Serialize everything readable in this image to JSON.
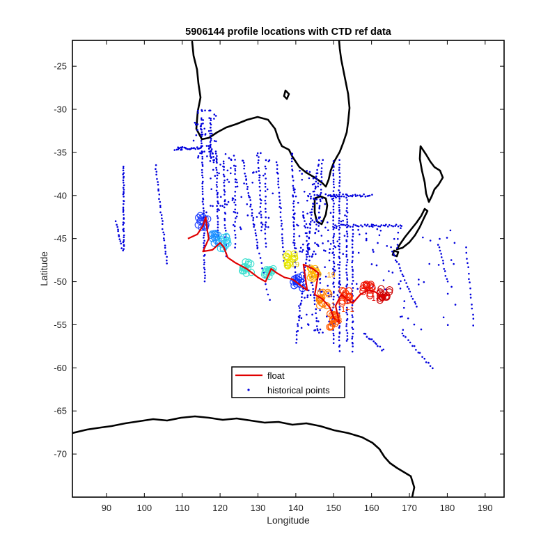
{
  "chart_data": {
    "type": "scatter",
    "title": "5906144 profile locations with CTD ref data",
    "xlabel": "Longitude",
    "ylabel": "Latitude",
    "xlim": [
      81,
      195
    ],
    "ylim": [
      -75,
      -22
    ],
    "xticks": [
      90,
      100,
      110,
      120,
      130,
      140,
      150,
      160,
      170,
      180,
      190
    ],
    "yticks": [
      -25,
      -30,
      -35,
      -40,
      -45,
      -50,
      -55,
      -60,
      -65,
      -70
    ],
    "grid": false,
    "legend": {
      "placement": "lower-center",
      "entries": [
        {
          "label": "float",
          "color": "#e00000",
          "style": "line"
        },
        {
          "label": "historical points",
          "color": "#0000dd",
          "style": "dot"
        }
      ]
    },
    "float_track": {
      "name": "float",
      "color": "#e00000",
      "points": [
        [
          111.5,
          -45.0
        ],
        [
          114.0,
          -44.5
        ],
        [
          115.5,
          -43.5
        ],
        [
          116.2,
          -42.5
        ],
        [
          116.6,
          -44.0
        ],
        [
          117.0,
          -45.0
        ],
        [
          115.5,
          -46.5
        ],
        [
          118.0,
          -46.3
        ],
        [
          120.0,
          -45.5
        ],
        [
          121.0,
          -46.0
        ],
        [
          122.0,
          -47.2
        ],
        [
          124.0,
          -47.8
        ],
        [
          127.0,
          -48.5
        ],
        [
          130.0,
          -49.5
        ],
        [
          132.0,
          -50.0
        ],
        [
          133.5,
          -48.5
        ],
        [
          135.0,
          -49.0
        ],
        [
          137.0,
          -49.5
        ],
        [
          139.0,
          -49.7
        ],
        [
          140.0,
          -50.0
        ],
        [
          141.5,
          -50.5
        ],
        [
          143.0,
          -51.0
        ],
        [
          142.0,
          -48.0
        ],
        [
          144.5,
          -48.5
        ],
        [
          146.0,
          -49.0
        ],
        [
          145.0,
          -51.5
        ],
        [
          147.0,
          -52.0
        ],
        [
          149.0,
          -53.0
        ],
        [
          150.0,
          -54.2
        ],
        [
          151.5,
          -54.8
        ],
        [
          150.5,
          -52.8
        ],
        [
          152.0,
          -51.5
        ],
        [
          153.5,
          -52.0
        ],
        [
          155.0,
          -52.5
        ],
        [
          157.0,
          -51.5
        ],
        [
          159.0,
          -51.0
        ],
        [
          161.0,
          -51.2
        ],
        [
          163.0,
          -51.8
        ],
        [
          164.5,
          -51.5
        ]
      ]
    },
    "profile_markers": [
      {
        "x": 115.5,
        "y": -43.0,
        "color": "#1f3fff"
      },
      {
        "x": 118.5,
        "y": -45.2,
        "color": "#1e90ff"
      },
      {
        "x": 121.0,
        "y": -45.5,
        "color": "#33ccee"
      },
      {
        "x": 127.0,
        "y": -48.5,
        "color": "#40e0d0"
      },
      {
        "x": 133.0,
        "y": -49.0,
        "color": "#40e0d0"
      },
      {
        "x": 138.5,
        "y": -47.5,
        "color": "#e8e800"
      },
      {
        "x": 140.5,
        "y": -50.0,
        "color": "#1030ff"
      },
      {
        "x": 145.0,
        "y": -49.2,
        "color": "#ffb300"
      },
      {
        "x": 147.5,
        "y": -52.0,
        "color": "#ff7f00"
      },
      {
        "x": 150.0,
        "y": -54.5,
        "color": "#ff5a00"
      },
      {
        "x": 153.0,
        "y": -51.8,
        "color": "#ff3300"
      },
      {
        "x": 159.0,
        "y": -51.0,
        "color": "#ee1100"
      },
      {
        "x": 163.5,
        "y": -51.6,
        "color": "#cc0000"
      }
    ],
    "profile_labels": [
      {
        "x": 138.7,
        "y": -48.3,
        "text": "19",
        "color": "#d4c200"
      },
      {
        "x": 148.2,
        "y": -49.5,
        "text": "19",
        "color": "#ff9900"
      },
      {
        "x": 148.8,
        "y": -54.8,
        "text": "1+3",
        "color": "#ff5500"
      },
      {
        "x": 152.0,
        "y": -53.5,
        "text": "1+1",
        "color": "#ff4400"
      },
      {
        "x": 152.8,
        "y": -52.1,
        "text": "12",
        "color": "#ff2200"
      },
      {
        "x": 147.0,
        "y": -53.0,
        "text": "1+1",
        "color": "#ff6600"
      },
      {
        "x": 160.0,
        "y": -52.2,
        "text": "1+1",
        "color": "#dd0000"
      }
    ],
    "historical_points_series": "historical points"
  },
  "colors": {
    "float": "#e00000",
    "historical": "#0000dd",
    "coastline": "#000000"
  }
}
